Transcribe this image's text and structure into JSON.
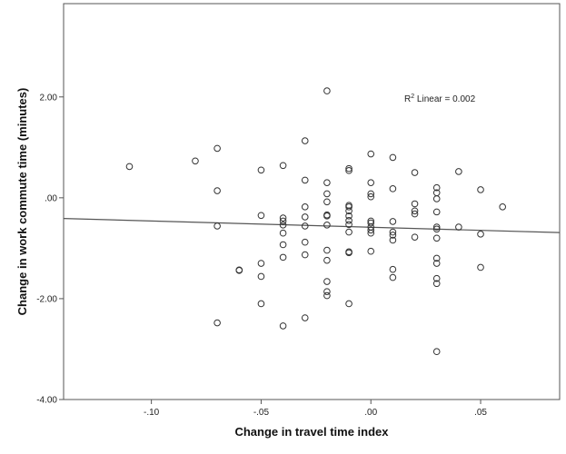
{
  "chart_data": {
    "type": "scatter",
    "xlabel": "Change in travel time index",
    "ylabel": "Change in work commute time (minutes)",
    "xlim": [
      -0.14,
      0.086
    ],
    "ylim": [
      -4.0,
      3.85
    ],
    "x_ticks": [
      -0.1,
      -0.05,
      0.0,
      0.05
    ],
    "x_tick_labels": [
      "-.10",
      "-.05",
      ".00",
      ".05"
    ],
    "y_ticks": [
      -4.0,
      -2.0,
      0.0,
      2.0
    ],
    "y_tick_labels": [
      "-4.00",
      "-2.00",
      ".00",
      "2.00"
    ],
    "grid": false,
    "fit_line": {
      "type": "linear",
      "x": [
        -0.14,
        0.086
      ],
      "y": [
        -0.41,
        -0.69
      ]
    },
    "annotation": {
      "prefix": "R",
      "superscript": "2",
      "suffix": " Linear = 0.002"
    },
    "points": [
      {
        "x": -0.11,
        "y": 0.62
      },
      {
        "x": -0.08,
        "y": 0.73
      },
      {
        "x": -0.07,
        "y": 0.98
      },
      {
        "x": -0.07,
        "y": 0.14
      },
      {
        "x": -0.07,
        "y": -0.56
      },
      {
        "x": -0.07,
        "y": -2.48
      },
      {
        "x": -0.06,
        "y": -1.43
      },
      {
        "x": -0.06,
        "y": -1.44
      },
      {
        "x": -0.05,
        "y": 0.55
      },
      {
        "x": -0.05,
        "y": -0.35
      },
      {
        "x": -0.05,
        "y": -1.3
      },
      {
        "x": -0.05,
        "y": -1.56
      },
      {
        "x": -0.05,
        "y": -2.1
      },
      {
        "x": -0.04,
        "y": 0.64
      },
      {
        "x": -0.04,
        "y": -0.4
      },
      {
        "x": -0.04,
        "y": -0.46
      },
      {
        "x": -0.04,
        "y": -0.54
      },
      {
        "x": -0.04,
        "y": -0.7
      },
      {
        "x": -0.04,
        "y": -0.93
      },
      {
        "x": -0.04,
        "y": -1.18
      },
      {
        "x": -0.04,
        "y": -2.54
      },
      {
        "x": -0.03,
        "y": 1.13
      },
      {
        "x": -0.03,
        "y": 0.35
      },
      {
        "x": -0.03,
        "y": -0.18
      },
      {
        "x": -0.03,
        "y": -0.38
      },
      {
        "x": -0.03,
        "y": -0.56
      },
      {
        "x": -0.03,
        "y": -0.88
      },
      {
        "x": -0.03,
        "y": -1.13
      },
      {
        "x": -0.03,
        "y": -2.38
      },
      {
        "x": -0.02,
        "y": 2.12
      },
      {
        "x": -0.02,
        "y": 0.3
      },
      {
        "x": -0.02,
        "y": 0.08
      },
      {
        "x": -0.02,
        "y": -0.08
      },
      {
        "x": -0.02,
        "y": -0.34
      },
      {
        "x": -0.02,
        "y": -0.36
      },
      {
        "x": -0.02,
        "y": -0.54
      },
      {
        "x": -0.02,
        "y": -1.04
      },
      {
        "x": -0.02,
        "y": -1.24
      },
      {
        "x": -0.02,
        "y": -1.66
      },
      {
        "x": -0.02,
        "y": -1.86
      },
      {
        "x": -0.02,
        "y": -1.94
      },
      {
        "x": -0.01,
        "y": 0.58
      },
      {
        "x": -0.01,
        "y": 0.54
      },
      {
        "x": -0.01,
        "y": -0.15
      },
      {
        "x": -0.01,
        "y": -0.18
      },
      {
        "x": -0.01,
        "y": -0.26
      },
      {
        "x": -0.01,
        "y": -0.36
      },
      {
        "x": -0.01,
        "y": -0.45
      },
      {
        "x": -0.01,
        "y": -0.53
      },
      {
        "x": -0.01,
        "y": -0.68
      },
      {
        "x": -0.01,
        "y": -1.07
      },
      {
        "x": -0.01,
        "y": -1.09
      },
      {
        "x": -0.01,
        "y": -2.1
      },
      {
        "x": 0.0,
        "y": 0.87
      },
      {
        "x": 0.0,
        "y": 0.3
      },
      {
        "x": 0.0,
        "y": 0.08
      },
      {
        "x": 0.0,
        "y": 0.02
      },
      {
        "x": 0.0,
        "y": -0.46
      },
      {
        "x": 0.0,
        "y": -0.5
      },
      {
        "x": 0.0,
        "y": -0.58
      },
      {
        "x": 0.0,
        "y": -0.64
      },
      {
        "x": 0.0,
        "y": -0.7
      },
      {
        "x": 0.0,
        "y": -1.06
      },
      {
        "x": 0.01,
        "y": 0.8
      },
      {
        "x": 0.01,
        "y": 0.18
      },
      {
        "x": 0.01,
        "y": -0.47
      },
      {
        "x": 0.01,
        "y": -0.68
      },
      {
        "x": 0.01,
        "y": -0.74
      },
      {
        "x": 0.01,
        "y": -0.84
      },
      {
        "x": 0.01,
        "y": -1.42
      },
      {
        "x": 0.01,
        "y": -1.58
      },
      {
        "x": 0.02,
        "y": 0.5
      },
      {
        "x": 0.02,
        "y": -0.12
      },
      {
        "x": 0.02,
        "y": -0.26
      },
      {
        "x": 0.02,
        "y": -0.32
      },
      {
        "x": 0.02,
        "y": -0.78
      },
      {
        "x": 0.03,
        "y": 0.2
      },
      {
        "x": 0.03,
        "y": 0.1
      },
      {
        "x": 0.03,
        "y": -0.02
      },
      {
        "x": 0.03,
        "y": -0.28
      },
      {
        "x": 0.03,
        "y": -0.58
      },
      {
        "x": 0.03,
        "y": -0.62
      },
      {
        "x": 0.03,
        "y": -0.8
      },
      {
        "x": 0.03,
        "y": -1.2
      },
      {
        "x": 0.03,
        "y": -1.3
      },
      {
        "x": 0.03,
        "y": -1.6
      },
      {
        "x": 0.03,
        "y": -1.7
      },
      {
        "x": 0.03,
        "y": -3.05
      },
      {
        "x": 0.04,
        "y": 0.52
      },
      {
        "x": 0.04,
        "y": -0.58
      },
      {
        "x": 0.05,
        "y": 0.16
      },
      {
        "x": 0.05,
        "y": -0.72
      },
      {
        "x": 0.05,
        "y": -1.38
      },
      {
        "x": 0.06,
        "y": -0.18
      }
    ]
  }
}
